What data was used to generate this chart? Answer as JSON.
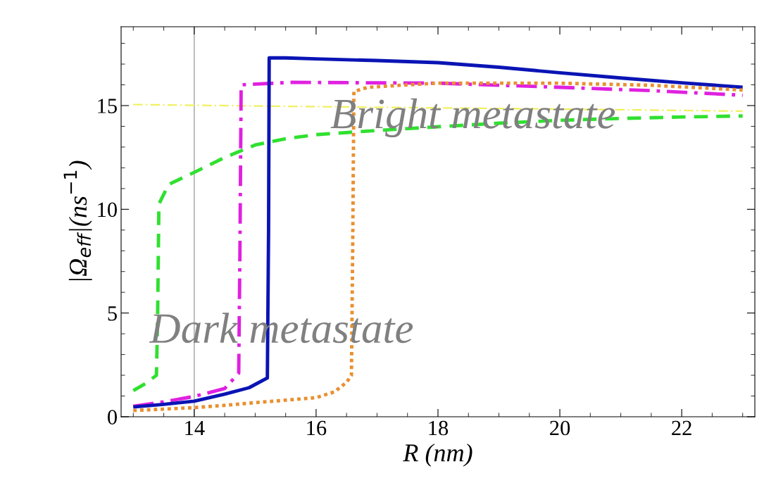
{
  "chart_data": {
    "type": "line",
    "xlabel": "R (nm)",
    "ylabel": "|Ω$_{eff}$|(ns$^{−1}$)",
    "xlim": [
      12.8,
      23.2
    ],
    "ylim": [
      0,
      18.8
    ],
    "xticks": [
      {
        "value": 13,
        "label": null
      },
      {
        "value": 13.5,
        "label": null
      },
      14,
      {
        "value": 14.5,
        "label": null
      },
      {
        "value": 15,
        "label": null
      },
      {
        "value": 15.5,
        "label": null
      },
      16,
      {
        "value": 16.5,
        "label": null
      },
      {
        "value": 17,
        "label": null
      },
      {
        "value": 17.5,
        "label": null
      },
      18,
      {
        "value": 18.5,
        "label": null
      },
      {
        "value": 19,
        "label": null
      },
      {
        "value": 19.5,
        "label": null
      },
      20,
      {
        "value": 20.5,
        "label": null
      },
      {
        "value": 21,
        "label": null
      },
      {
        "value": 21.5,
        "label": null
      },
      22,
      {
        "value": 22.5,
        "label": null
      },
      {
        "value": 23,
        "label": null
      }
    ],
    "yticks": [
      0,
      {
        "value": 1,
        "label": null
      },
      {
        "value": 2,
        "label": null
      },
      {
        "value": 3,
        "label": null
      },
      {
        "value": 4,
        "label": null
      },
      5,
      {
        "value": 6,
        "label": null
      },
      {
        "value": 7,
        "label": null
      },
      {
        "value": 8,
        "label": null
      },
      {
        "value": 9,
        "label": null
      },
      10,
      {
        "value": 11,
        "label": null
      },
      {
        "value": 12,
        "label": null
      },
      {
        "value": 13,
        "label": null
      },
      {
        "value": 14,
        "label": null
      },
      15,
      {
        "value": 16,
        "label": null
      },
      {
        "value": 17,
        "label": null
      },
      {
        "value": 18,
        "label": null
      }
    ],
    "grid": false,
    "legend": false,
    "marker": "none",
    "ref_lines": [
      {
        "axis": "x",
        "value": 14,
        "color": "#b0b0b0",
        "line_style": "solid"
      }
    ],
    "annotations": [
      "Bright metastate",
      "Dark metastate"
    ],
    "series": [
      {
        "color": "#f0f060",
        "line_style": "dashdot",
        "x": [
          13,
          15,
          17,
          19,
          21,
          23
        ],
        "values": [
          15.05,
          14.98,
          14.92,
          14.86,
          14.8,
          14.73
        ]
      },
      {
        "color": "#30e030",
        "line_style": "dashed",
        "x": [
          13,
          13.2,
          13.38,
          13.4,
          13.42,
          13.58,
          14,
          14.5,
          15,
          15.5,
          16,
          17,
          18,
          19,
          20,
          21,
          22,
          23
        ],
        "values": [
          1.26,
          1.6,
          2.0,
          5.0,
          10.25,
          11.2,
          11.78,
          12.5,
          13.1,
          13.4,
          13.6,
          13.8,
          13.98,
          14.15,
          14.29,
          14.38,
          14.45,
          14.5
        ]
      },
      {
        "color": "#e020e0",
        "line_style": "dashdot",
        "x": [
          13,
          13.5,
          14,
          14.5,
          14.73,
          14.75,
          14.77,
          15.6,
          18,
          20,
          21.5,
          23
        ],
        "values": [
          0.5,
          0.72,
          0.98,
          1.36,
          2.1,
          8.0,
          16.0,
          16.12,
          16.08,
          15.88,
          15.72,
          15.5
        ]
      },
      {
        "color": "#0a14b4",
        "line_style": "solid",
        "x": [
          13,
          13.5,
          14,
          14.5,
          14.9,
          15.2,
          15.22,
          15.23,
          15.5,
          16,
          17,
          18,
          19,
          20,
          21,
          22,
          23
        ],
        "values": [
          0.47,
          0.6,
          0.75,
          1.09,
          1.4,
          1.87,
          9.0,
          17.3,
          17.3,
          17.25,
          17.17,
          17.07,
          16.85,
          16.58,
          16.33,
          16.1,
          15.88
        ]
      },
      {
        "color": "#e89030",
        "line_style": "dotted",
        "x": [
          13,
          13.5,
          14,
          14.5,
          15,
          15.5,
          16,
          16.3,
          16.5,
          16.58,
          16.6,
          16.62,
          16.85,
          17.5,
          18,
          20,
          21.5,
          23
        ],
        "values": [
          0.3,
          0.37,
          0.44,
          0.55,
          0.68,
          0.8,
          0.92,
          1.2,
          1.66,
          2.0,
          8.0,
          15.68,
          15.88,
          16.0,
          16.08,
          16.08,
          15.98,
          15.75
        ]
      }
    ]
  }
}
